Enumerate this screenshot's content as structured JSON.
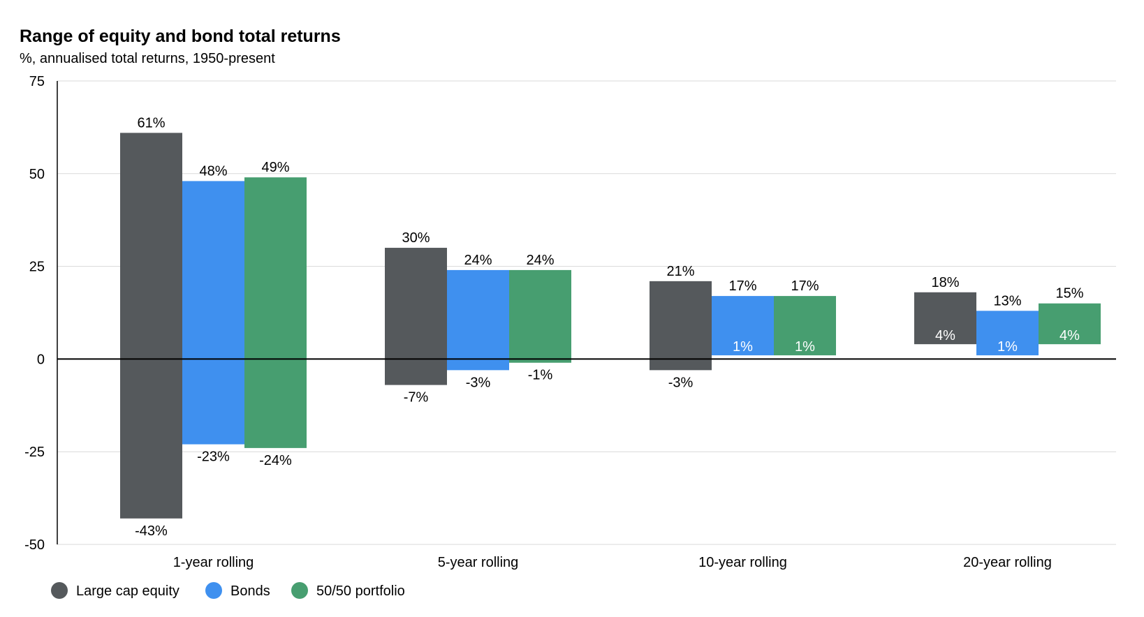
{
  "chart_data": {
    "type": "bar",
    "subtype": "floating-range",
    "title": "Range of equity and bond total returns",
    "subtitle": "%, annualised total returns, 1950-present",
    "categories": [
      "1-year rolling",
      "5-year rolling",
      "10-year rolling",
      "20-year rolling"
    ],
    "ylim": [
      -50,
      75
    ],
    "yticks": [
      "75",
      "50",
      "25",
      "0",
      "-25",
      "-50"
    ],
    "ytick_values": [
      75,
      50,
      25,
      0,
      -25,
      -50
    ],
    "grid": true,
    "legend_position": "bottom-left",
    "series": [
      {
        "name": "Large cap equity",
        "color": "#55595c",
        "max": [
          61,
          30,
          21,
          18
        ],
        "min": [
          -43,
          -7,
          -3,
          4
        ],
        "max_labels": [
          "61%",
          "30%",
          "21%",
          "18%"
        ],
        "min_labels": [
          "-43%",
          "-7%",
          "-3%",
          "4%"
        ]
      },
      {
        "name": "Bonds",
        "color": "#3f90ef",
        "max": [
          48,
          24,
          17,
          13
        ],
        "min": [
          -23,
          -3,
          1,
          1
        ],
        "max_labels": [
          "48%",
          "24%",
          "17%",
          "13%"
        ],
        "min_labels": [
          "-23%",
          "-3%",
          "1%",
          "1%"
        ]
      },
      {
        "name": "50/50 portfolio",
        "color": "#479e70",
        "max": [
          49,
          24,
          17,
          15
        ],
        "min": [
          -24,
          -1,
          1,
          4
        ],
        "max_labels": [
          "49%",
          "24%",
          "17%",
          "15%"
        ],
        "min_labels": [
          "-24%",
          "-1%",
          "1%",
          "4%"
        ]
      }
    ]
  }
}
